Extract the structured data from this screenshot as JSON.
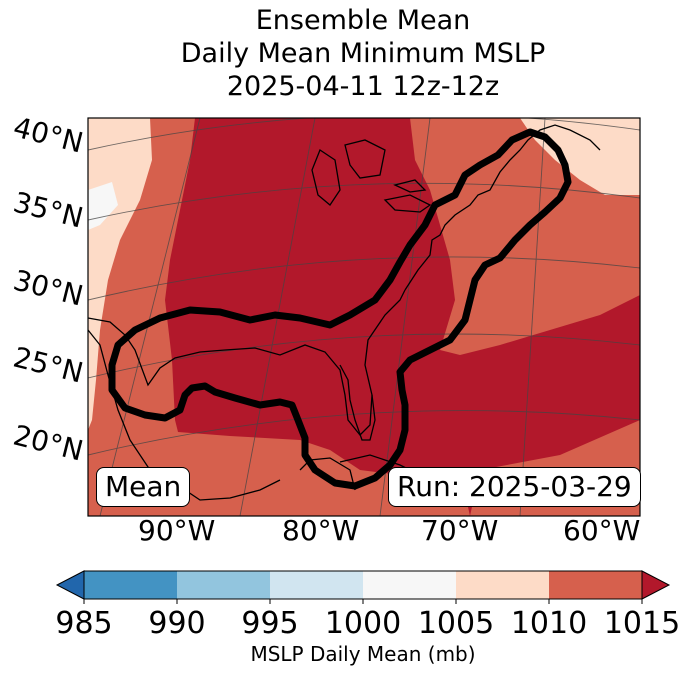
{
  "title": {
    "line1": "Ensemble Mean",
    "line2": "Daily Mean Minimum MSLP",
    "line3": "2025-04-11 12z-12z"
  },
  "lat_labels": [
    "40°N",
    "35°N",
    "30°N",
    "25°N",
    "20°N"
  ],
  "lon_labels": [
    "90°W",
    "80°W",
    "70°W",
    "60°W"
  ],
  "mean_label": "Mean",
  "run_label": "Run: 2025-03-29",
  "colorbar": {
    "label": "MSLP Daily Mean (mb)",
    "ticks": [
      "985",
      "990",
      "995",
      "1000",
      "1005",
      "1010",
      "1015"
    ],
    "colors": [
      "#2166ac",
      "#4393c3",
      "#92c5de",
      "#d1e5f0",
      "#f7f7f7",
      "#fddbc7",
      "#d6604d",
      "#b2182b"
    ]
  },
  "colors": {
    "bin_1005_1010": "#fddbc7",
    "bin_1010_1015": "#d6604d",
    "bin_above_1015": "#b2182b",
    "bin_1000_1005": "#f7f7f7"
  }
}
